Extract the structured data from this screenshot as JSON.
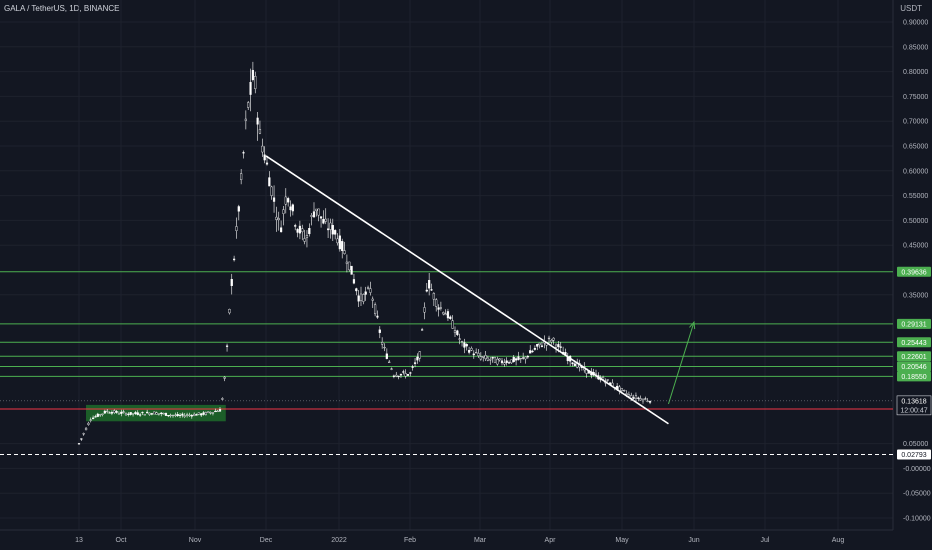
{
  "header": {
    "title": "GALA / TetherUS, 1D, BINANCE",
    "currency": "USDT"
  },
  "colors": {
    "background": "#131722",
    "grid": "#1e222d",
    "candle": "#ffffff",
    "level_green": "#4caf50",
    "level_red": "#f23645",
    "trendline": "#ffffff",
    "arrow": "#4caf50",
    "zone": "#1f6b2a"
  },
  "chart_data": {
    "type": "candlestick",
    "y_ticks": [
      "0.90000",
      "0.85000",
      "0.80000",
      "0.75000",
      "0.70000",
      "0.65000",
      "0.60000",
      "0.55000",
      "0.50000",
      "0.45000",
      "0.35000",
      "0.05000",
      "-0.00000",
      "-0.05000",
      "-0.10000"
    ],
    "x_ticks": [
      "13",
      "Oct",
      "Nov",
      "Dec",
      "2022",
      "Feb",
      "Mar",
      "Apr",
      "May",
      "Jun",
      "Jul",
      "Aug"
    ],
    "price_levels": [
      {
        "label": "0.39636",
        "value": 0.39636,
        "color": "#4caf50"
      },
      {
        "label": "0.29131",
        "value": 0.29131,
        "color": "#4caf50"
      },
      {
        "label": "0.25443",
        "value": 0.25443,
        "color": "#4caf50"
      },
      {
        "label": "0.22601",
        "value": 0.22601,
        "color": "#4caf50"
      },
      {
        "label": "0.20546",
        "value": 0.20546,
        "color": "#4caf50"
      },
      {
        "label": "0.18550",
        "value": 0.1855,
        "color": "#4caf50"
      },
      {
        "label": "0.11971",
        "value": 0.11971,
        "color": "#f23645"
      },
      {
        "label": "0.02793",
        "value": 0.02793,
        "color": "#ffffff"
      }
    ],
    "current_price": {
      "value": "0.13618",
      "countdown": "12:00:47"
    },
    "zone": {
      "top": 0.128,
      "bottom": 0.095
    },
    "trendline": {
      "from_date": "2021-12-01",
      "from_price": 0.63,
      "to_date": "2022-05-21",
      "to_price": 0.09
    },
    "forecast_arrow": {
      "from_date": "2022-05-21",
      "from_price": 0.13,
      "to_date": "2022-06-01",
      "to_price": 0.295
    },
    "price_series": [
      [
        "2021-09-13",
        0.05
      ],
      [
        "2021-09-18",
        0.1
      ],
      [
        "2021-09-25",
        0.115
      ],
      [
        "2021-10-05",
        0.11
      ],
      [
        "2021-10-15",
        0.112
      ],
      [
        "2021-10-25",
        0.106
      ],
      [
        "2021-11-05",
        0.11
      ],
      [
        "2021-11-12",
        0.118
      ],
      [
        "2021-11-14",
        0.2
      ],
      [
        "2021-11-16",
        0.35
      ],
      [
        "2021-11-18",
        0.45
      ],
      [
        "2021-11-20",
        0.55
      ],
      [
        "2021-11-23",
        0.72
      ],
      [
        "2021-11-26",
        0.8
      ],
      [
        "2021-11-28",
        0.68
      ],
      [
        "2021-12-01",
        0.62
      ],
      [
        "2021-12-04",
        0.55
      ],
      [
        "2021-12-07",
        0.48
      ],
      [
        "2021-12-10",
        0.56
      ],
      [
        "2021-12-14",
        0.49
      ],
      [
        "2021-12-18",
        0.46
      ],
      [
        "2021-12-22",
        0.53
      ],
      [
        "2021-12-26",
        0.49
      ],
      [
        "2021-12-30",
        0.48
      ],
      [
        "2022-01-05",
        0.42
      ],
      [
        "2022-01-10",
        0.34
      ],
      [
        "2022-01-15",
        0.36
      ],
      [
        "2022-01-20",
        0.25
      ],
      [
        "2022-01-25",
        0.19
      ],
      [
        "2022-02-01",
        0.19
      ],
      [
        "2022-02-05",
        0.23
      ],
      [
        "2022-02-08",
        0.38
      ],
      [
        "2022-02-12",
        0.33
      ],
      [
        "2022-02-16",
        0.31
      ],
      [
        "2022-02-22",
        0.25
      ],
      [
        "2022-03-01",
        0.225
      ],
      [
        "2022-03-10",
        0.215
      ],
      [
        "2022-03-20",
        0.22
      ],
      [
        "2022-03-28",
        0.25
      ],
      [
        "2022-04-02",
        0.26
      ],
      [
        "2022-04-08",
        0.225
      ],
      [
        "2022-04-15",
        0.2
      ],
      [
        "2022-04-25",
        0.175
      ],
      [
        "2022-05-05",
        0.145
      ],
      [
        "2022-05-10",
        0.14
      ],
      [
        "2022-05-14",
        0.136
      ]
    ]
  }
}
